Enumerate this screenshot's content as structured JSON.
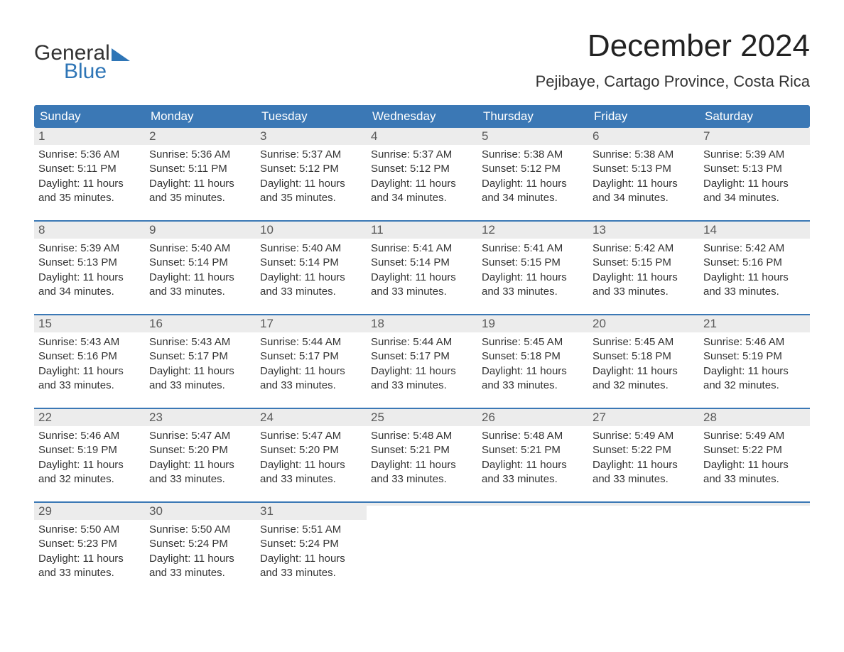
{
  "logo": {
    "text_top": "General",
    "text_bottom": "Blue",
    "tri_color": "#2e75b6"
  },
  "title": "December 2024",
  "location": "Pejibaye, Cartago Province, Costa Rica",
  "colors": {
    "header_bg": "#3b78b5",
    "header_text": "#ffffff",
    "daynum_bg": "#ececec",
    "daynum_text": "#5a5a5a",
    "body_text": "#333333",
    "week_border": "#3b78b5",
    "page_bg": "#ffffff"
  },
  "typography": {
    "title_fontsize": 44,
    "location_fontsize": 22,
    "dayhead_fontsize": 17,
    "daynum_fontsize": 17,
    "body_fontsize": 15,
    "font_family": "Arial"
  },
  "day_headers": [
    "Sunday",
    "Monday",
    "Tuesday",
    "Wednesday",
    "Thursday",
    "Friday",
    "Saturday"
  ],
  "weeks": [
    [
      {
        "n": "1",
        "sr": "Sunrise: 5:36 AM",
        "ss": "Sunset: 5:11 PM",
        "d1": "Daylight: 11 hours",
        "d2": "and 35 minutes."
      },
      {
        "n": "2",
        "sr": "Sunrise: 5:36 AM",
        "ss": "Sunset: 5:11 PM",
        "d1": "Daylight: 11 hours",
        "d2": "and 35 minutes."
      },
      {
        "n": "3",
        "sr": "Sunrise: 5:37 AM",
        "ss": "Sunset: 5:12 PM",
        "d1": "Daylight: 11 hours",
        "d2": "and 35 minutes."
      },
      {
        "n": "4",
        "sr": "Sunrise: 5:37 AM",
        "ss": "Sunset: 5:12 PM",
        "d1": "Daylight: 11 hours",
        "d2": "and 34 minutes."
      },
      {
        "n": "5",
        "sr": "Sunrise: 5:38 AM",
        "ss": "Sunset: 5:12 PM",
        "d1": "Daylight: 11 hours",
        "d2": "and 34 minutes."
      },
      {
        "n": "6",
        "sr": "Sunrise: 5:38 AM",
        "ss": "Sunset: 5:13 PM",
        "d1": "Daylight: 11 hours",
        "d2": "and 34 minutes."
      },
      {
        "n": "7",
        "sr": "Sunrise: 5:39 AM",
        "ss": "Sunset: 5:13 PM",
        "d1": "Daylight: 11 hours",
        "d2": "and 34 minutes."
      }
    ],
    [
      {
        "n": "8",
        "sr": "Sunrise: 5:39 AM",
        "ss": "Sunset: 5:13 PM",
        "d1": "Daylight: 11 hours",
        "d2": "and 34 minutes."
      },
      {
        "n": "9",
        "sr": "Sunrise: 5:40 AM",
        "ss": "Sunset: 5:14 PM",
        "d1": "Daylight: 11 hours",
        "d2": "and 33 minutes."
      },
      {
        "n": "10",
        "sr": "Sunrise: 5:40 AM",
        "ss": "Sunset: 5:14 PM",
        "d1": "Daylight: 11 hours",
        "d2": "and 33 minutes."
      },
      {
        "n": "11",
        "sr": "Sunrise: 5:41 AM",
        "ss": "Sunset: 5:14 PM",
        "d1": "Daylight: 11 hours",
        "d2": "and 33 minutes."
      },
      {
        "n": "12",
        "sr": "Sunrise: 5:41 AM",
        "ss": "Sunset: 5:15 PM",
        "d1": "Daylight: 11 hours",
        "d2": "and 33 minutes."
      },
      {
        "n": "13",
        "sr": "Sunrise: 5:42 AM",
        "ss": "Sunset: 5:15 PM",
        "d1": "Daylight: 11 hours",
        "d2": "and 33 minutes."
      },
      {
        "n": "14",
        "sr": "Sunrise: 5:42 AM",
        "ss": "Sunset: 5:16 PM",
        "d1": "Daylight: 11 hours",
        "d2": "and 33 minutes."
      }
    ],
    [
      {
        "n": "15",
        "sr": "Sunrise: 5:43 AM",
        "ss": "Sunset: 5:16 PM",
        "d1": "Daylight: 11 hours",
        "d2": "and 33 minutes."
      },
      {
        "n": "16",
        "sr": "Sunrise: 5:43 AM",
        "ss": "Sunset: 5:17 PM",
        "d1": "Daylight: 11 hours",
        "d2": "and 33 minutes."
      },
      {
        "n": "17",
        "sr": "Sunrise: 5:44 AM",
        "ss": "Sunset: 5:17 PM",
        "d1": "Daylight: 11 hours",
        "d2": "and 33 minutes."
      },
      {
        "n": "18",
        "sr": "Sunrise: 5:44 AM",
        "ss": "Sunset: 5:17 PM",
        "d1": "Daylight: 11 hours",
        "d2": "and 33 minutes."
      },
      {
        "n": "19",
        "sr": "Sunrise: 5:45 AM",
        "ss": "Sunset: 5:18 PM",
        "d1": "Daylight: 11 hours",
        "d2": "and 33 minutes."
      },
      {
        "n": "20",
        "sr": "Sunrise: 5:45 AM",
        "ss": "Sunset: 5:18 PM",
        "d1": "Daylight: 11 hours",
        "d2": "and 32 minutes."
      },
      {
        "n": "21",
        "sr": "Sunrise: 5:46 AM",
        "ss": "Sunset: 5:19 PM",
        "d1": "Daylight: 11 hours",
        "d2": "and 32 minutes."
      }
    ],
    [
      {
        "n": "22",
        "sr": "Sunrise: 5:46 AM",
        "ss": "Sunset: 5:19 PM",
        "d1": "Daylight: 11 hours",
        "d2": "and 32 minutes."
      },
      {
        "n": "23",
        "sr": "Sunrise: 5:47 AM",
        "ss": "Sunset: 5:20 PM",
        "d1": "Daylight: 11 hours",
        "d2": "and 33 minutes."
      },
      {
        "n": "24",
        "sr": "Sunrise: 5:47 AM",
        "ss": "Sunset: 5:20 PM",
        "d1": "Daylight: 11 hours",
        "d2": "and 33 minutes."
      },
      {
        "n": "25",
        "sr": "Sunrise: 5:48 AM",
        "ss": "Sunset: 5:21 PM",
        "d1": "Daylight: 11 hours",
        "d2": "and 33 minutes."
      },
      {
        "n": "26",
        "sr": "Sunrise: 5:48 AM",
        "ss": "Sunset: 5:21 PM",
        "d1": "Daylight: 11 hours",
        "d2": "and 33 minutes."
      },
      {
        "n": "27",
        "sr": "Sunrise: 5:49 AM",
        "ss": "Sunset: 5:22 PM",
        "d1": "Daylight: 11 hours",
        "d2": "and 33 minutes."
      },
      {
        "n": "28",
        "sr": "Sunrise: 5:49 AM",
        "ss": "Sunset: 5:22 PM",
        "d1": "Daylight: 11 hours",
        "d2": "and 33 minutes."
      }
    ],
    [
      {
        "n": "29",
        "sr": "Sunrise: 5:50 AM",
        "ss": "Sunset: 5:23 PM",
        "d1": "Daylight: 11 hours",
        "d2": "and 33 minutes."
      },
      {
        "n": "30",
        "sr": "Sunrise: 5:50 AM",
        "ss": "Sunset: 5:24 PM",
        "d1": "Daylight: 11 hours",
        "d2": "and 33 minutes."
      },
      {
        "n": "31",
        "sr": "Sunrise: 5:51 AM",
        "ss": "Sunset: 5:24 PM",
        "d1": "Daylight: 11 hours",
        "d2": "and 33 minutes."
      },
      {
        "empty": true
      },
      {
        "empty": true
      },
      {
        "empty": true
      },
      {
        "empty": true
      }
    ]
  ]
}
